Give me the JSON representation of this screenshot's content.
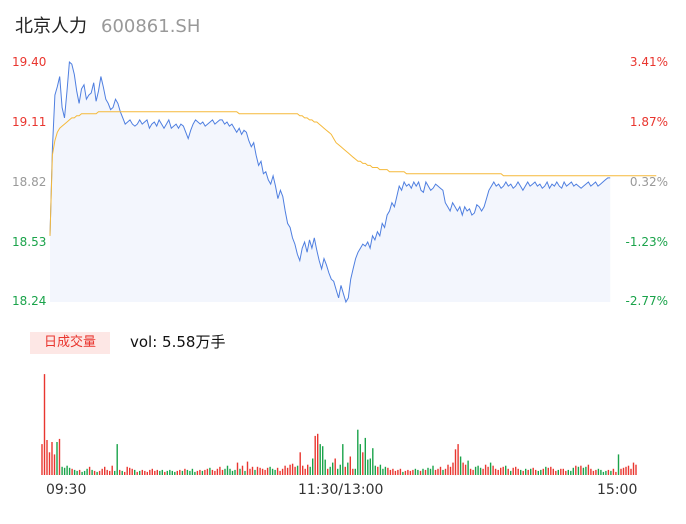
{
  "header": {
    "name": "北京人力",
    "code": "600861.SH"
  },
  "price_axis": {
    "left_labels": [
      "19.40",
      "19.11",
      "18.82",
      "18.53",
      "18.24"
    ],
    "right_labels": [
      "3.41%",
      "1.87%",
      "0.32%",
      "-1.23%",
      "-2.77%"
    ]
  },
  "volume_panel": {
    "badge": "日成交量",
    "vol_text": "vol: 5.58万手"
  },
  "time_labels": [
    "09:30",
    "11:30/13:00",
    "15:00"
  ],
  "colors": {
    "up": "#e9362f",
    "down": "#1aa34a",
    "neutral": "#999999",
    "price_line": "#4f7fe0",
    "avg_line": "#f5b93a",
    "area_fill": "#f3f6fd"
  },
  "chart_data": [
    {
      "type": "line",
      "title": "",
      "xlabel": "",
      "ylabel": "",
      "x_range": [
        0,
        240
      ],
      "ylim": [
        18.24,
        19.4
      ],
      "series": [
        {
          "values": [
            18.56,
            18.98,
            19.24,
            19.28,
            19.33,
            19.18,
            19.13,
            19.26,
            19.4,
            19.39,
            19.34,
            19.26,
            19.2,
            19.27,
            19.29,
            19.22,
            19.24,
            19.25,
            19.3,
            19.21,
            19.26,
            19.33,
            19.28,
            19.22,
            19.2,
            19.17,
            19.18,
            19.22,
            19.2,
            19.16,
            19.13,
            19.1,
            19.11,
            19.12,
            19.1,
            19.09,
            19.1,
            19.12,
            19.1,
            19.11,
            19.12,
            19.08,
            19.1,
            19.11,
            19.09,
            19.12,
            19.1,
            19.08,
            19.1,
            19.12,
            19.08,
            19.09,
            19.1,
            19.08,
            19.1,
            19.09,
            19.06,
            19.03,
            19.07,
            19.1,
            19.12,
            19.11,
            19.1,
            19.11,
            19.09,
            19.1,
            19.11,
            19.12,
            19.1,
            19.11,
            19.12,
            19.12,
            19.1,
            19.11,
            19.09,
            19.1,
            19.08,
            19.06,
            19.08,
            19.05,
            19.07,
            19.06,
            19.02,
            18.99,
            19.01,
            18.95,
            18.9,
            18.92,
            18.86,
            18.87,
            18.83,
            18.81,
            18.85,
            18.8,
            18.74,
            18.78,
            18.75,
            18.68,
            18.62,
            18.6,
            18.55,
            18.52,
            18.47,
            18.44,
            18.5,
            18.53,
            18.48,
            18.54,
            18.5,
            18.55,
            18.49,
            18.44,
            18.4,
            18.45,
            18.42,
            18.38,
            18.35,
            18.34,
            18.3,
            18.26,
            18.32,
            18.28,
            18.24,
            18.26,
            18.35,
            18.4,
            18.45,
            18.48,
            18.5,
            18.52,
            18.51,
            18.53,
            18.5,
            18.56,
            18.54,
            18.58,
            18.56,
            18.62,
            18.6,
            18.66,
            18.68,
            18.72,
            18.7,
            18.75,
            18.8,
            18.78,
            18.82,
            18.8,
            18.81,
            18.79,
            18.82,
            18.8,
            18.82,
            18.78,
            18.77,
            18.82,
            18.8,
            18.78,
            18.79,
            18.81,
            18.8,
            18.79,
            18.78,
            18.72,
            18.7,
            18.68,
            18.72,
            18.7,
            18.68,
            18.7,
            18.66,
            18.7,
            18.68,
            18.69,
            18.66,
            18.67,
            18.71,
            18.7,
            18.68,
            18.7,
            18.74,
            18.78,
            18.8,
            18.82,
            18.8,
            18.81,
            18.79,
            18.8,
            18.82,
            18.8,
            18.81,
            18.79,
            18.8,
            18.82,
            18.8,
            18.78,
            18.8,
            18.82,
            18.8,
            18.81,
            18.82,
            18.8,
            18.81,
            18.79,
            18.8,
            18.82,
            18.79,
            18.81,
            18.8,
            18.82,
            18.8,
            18.79,
            18.82,
            18.8,
            18.81,
            18.82,
            18.8,
            18.81,
            18.8,
            18.79,
            18.8,
            18.81,
            18.82,
            18.8,
            18.81,
            18.82,
            18.8,
            18.81,
            18.82,
            18.83,
            18.84,
            18.84
          ]
        },
        {
          "values": [
            18.56,
            18.95,
            19.02,
            19.06,
            19.08,
            19.09,
            19.1,
            19.11,
            19.12,
            19.13,
            19.13,
            19.14,
            19.14,
            19.15,
            19.15,
            19.15,
            19.15,
            19.15,
            19.15,
            19.15,
            19.16,
            19.16,
            19.16,
            19.16,
            19.16,
            19.16,
            19.16,
            19.16,
            19.16,
            19.16,
            19.16,
            19.16,
            19.16,
            19.16,
            19.16,
            19.16,
            19.16,
            19.16,
            19.16,
            19.16,
            19.16,
            19.16,
            19.16,
            19.16,
            19.16,
            19.16,
            19.16,
            19.16,
            19.16,
            19.16,
            19.16,
            19.16,
            19.16,
            19.16,
            19.16,
            19.16,
            19.16,
            19.16,
            19.16,
            19.16,
            19.16,
            19.16,
            19.16,
            19.16,
            19.16,
            19.16,
            19.16,
            19.16,
            19.16,
            19.16,
            19.16,
            19.16,
            19.16,
            19.16,
            19.16,
            19.16,
            19.16,
            19.16,
            19.15,
            19.15,
            19.15,
            19.15,
            19.15,
            19.15,
            19.15,
            19.15,
            19.15,
            19.15,
            19.15,
            19.15,
            19.15,
            19.15,
            19.15,
            19.15,
            19.15,
            19.15,
            19.15,
            19.15,
            19.15,
            19.15,
            19.15,
            19.15,
            19.15,
            19.14,
            19.14,
            19.13,
            19.13,
            19.12,
            19.12,
            19.11,
            19.11,
            19.1,
            19.09,
            19.08,
            19.07,
            19.06,
            19.05,
            19.03,
            19.01,
            19.0,
            18.99,
            18.98,
            18.97,
            18.96,
            18.95,
            18.94,
            18.93,
            18.92,
            18.92,
            18.91,
            18.91,
            18.9,
            18.9,
            18.89,
            18.89,
            18.89,
            18.88,
            18.88,
            18.88,
            18.88,
            18.87,
            18.87,
            18.87,
            18.87,
            18.87,
            18.87,
            18.87,
            18.86,
            18.86,
            18.86,
            18.86,
            18.86,
            18.86,
            18.86,
            18.86,
            18.86,
            18.86,
            18.86,
            18.86,
            18.86,
            18.86,
            18.86,
            18.86,
            18.86,
            18.86,
            18.86,
            18.86,
            18.86,
            18.86,
            18.86,
            18.86,
            18.86,
            18.86,
            18.86,
            18.86,
            18.86,
            18.86,
            18.86,
            18.86,
            18.86,
            18.86,
            18.86,
            18.86,
            18.86,
            18.86,
            18.86,
            18.86,
            18.85,
            18.85,
            18.85,
            18.85,
            18.85,
            18.85,
            18.85,
            18.85,
            18.85,
            18.85,
            18.85,
            18.85,
            18.85,
            18.85,
            18.85,
            18.85,
            18.85,
            18.85,
            18.85,
            18.85,
            18.85,
            18.85,
            18.85,
            18.85,
            18.85,
            18.85,
            18.85,
            18.85,
            18.85,
            18.85,
            18.85,
            18.85,
            18.85,
            18.85,
            18.85,
            18.85,
            18.85,
            18.85,
            18.85,
            18.85,
            18.85,
            18.85,
            18.85,
            18.85,
            18.85,
            18.85,
            18.85,
            18.85,
            18.85,
            18.85,
            18.85,
            18.85,
            18.85,
            18.85,
            18.85,
            18.85,
            18.85,
            18.85,
            18.85,
            18.85,
            18.85,
            18.85,
            18.85,
            18.85
          ]
        }
      ]
    },
    {
      "type": "bar",
      "title": "",
      "x_range": [
        0,
        240
      ],
      "ylim": [
        0,
        100
      ],
      "values": [
        30,
        98,
        34,
        22,
        32,
        20,
        32,
        35,
        8,
        7,
        9,
        7,
        6,
        5,
        4,
        5,
        3,
        4,
        6,
        8,
        5,
        4,
        3,
        4,
        6,
        8,
        5,
        4,
        9,
        4,
        30,
        5,
        4,
        3,
        8,
        7,
        6,
        5,
        3,
        4,
        5,
        4,
        3,
        5,
        6,
        4,
        5,
        4,
        5,
        3,
        4,
        5,
        4,
        3,
        4,
        5,
        4,
        6,
        5,
        4,
        6,
        3,
        4,
        5,
        4,
        5,
        6,
        7,
        5,
        4,
        6,
        8,
        5,
        6,
        9,
        6,
        4,
        5,
        12,
        6,
        9,
        4,
        13,
        6,
        8,
        5,
        8,
        7,
        6,
        5,
        7,
        8,
        6,
        5,
        7,
        4,
        6,
        9,
        7,
        10,
        11,
        8,
        9,
        22,
        9,
        6,
        10,
        8,
        16,
        38,
        40,
        30,
        28,
        15,
        6,
        8,
        12,
        16,
        6,
        10,
        30,
        8,
        12,
        18,
        6,
        6,
        44,
        30,
        22,
        36,
        15,
        16,
        26,
        9,
        8,
        10,
        6,
        8,
        7,
        5,
        6,
        4,
        5,
        6,
        3,
        4,
        5,
        4,
        5,
        6,
        5,
        4,
        6,
        5,
        7,
        6,
        9,
        5,
        6,
        8,
        5,
        6,
        10,
        8,
        12,
        25,
        30,
        18,
        12,
        10,
        14,
        6,
        5,
        8,
        9,
        7,
        6,
        10,
        8,
        12,
        9,
        6,
        5,
        7,
        8,
        9,
        6,
        4,
        7,
        8,
        6,
        5,
        4,
        6,
        5,
        6,
        7,
        5,
        4,
        5,
        6,
        8,
        7,
        8,
        6,
        4,
        5,
        6,
        6,
        4,
        5,
        4,
        7,
        9,
        8,
        9,
        7,
        8,
        10,
        6,
        4,
        5,
        6,
        5,
        3,
        4,
        5,
        4,
        6,
        3,
        20,
        6,
        7,
        8,
        9,
        6,
        12,
        10
      ],
      "colors": [
        "up",
        "up",
        "up",
        "up",
        "up",
        "up",
        "down",
        "up",
        "down",
        "down",
        "down",
        "down",
        "up",
        "down",
        "down",
        "up",
        "down",
        "down",
        "down",
        "up",
        "down",
        "up",
        "down",
        "up",
        "up",
        "up",
        "up",
        "up",
        "up",
        "down",
        "down",
        "up",
        "down",
        "up",
        "up",
        "up",
        "up",
        "down",
        "up",
        "down",
        "up",
        "up",
        "up",
        "up",
        "up",
        "up",
        "up",
        "down",
        "down",
        "up",
        "down",
        "down",
        "down",
        "down",
        "up",
        "up",
        "down",
        "up",
        "down",
        "down",
        "down",
        "down",
        "up",
        "up",
        "down",
        "up",
        "up",
        "down",
        "up",
        "up",
        "up",
        "up",
        "up",
        "down",
        "down",
        "down",
        "down",
        "down",
        "up",
        "down",
        "up",
        "down",
        "up",
        "up",
        "up",
        "down",
        "up",
        "up",
        "up",
        "up",
        "up",
        "down",
        "down",
        "down",
        "up",
        "up",
        "up",
        "up",
        "up",
        "up",
        "up",
        "up",
        "down",
        "up",
        "up",
        "up",
        "up",
        "down",
        "down",
        "up",
        "up",
        "down",
        "down",
        "down",
        "up",
        "down",
        "down",
        "up",
        "down",
        "down",
        "down",
        "up",
        "down",
        "up",
        "up",
        "down",
        "down",
        "down",
        "up",
        "down",
        "down",
        "down",
        "down",
        "down",
        "up",
        "down",
        "down",
        "down",
        "up",
        "up",
        "up",
        "up",
        "up",
        "up",
        "down",
        "up",
        "up",
        "up",
        "up",
        "down",
        "down",
        "up",
        "down",
        "up",
        "down",
        "down",
        "down",
        "up",
        "up",
        "up",
        "down",
        "up",
        "up",
        "up",
        "up",
        "up",
        "up",
        "down",
        "up",
        "up",
        "down",
        "up",
        "up",
        "down",
        "down",
        "down",
        "up",
        "up",
        "up",
        "down",
        "up",
        "up",
        "up",
        "up",
        "up",
        "down",
        "up",
        "down",
        "up",
        "up",
        "up",
        "down",
        "up",
        "down",
        "up",
        "down",
        "up",
        "up",
        "down",
        "down",
        "up",
        "down",
        "up",
        "up",
        "up",
        "up",
        "down",
        "up",
        "up",
        "up",
        "down",
        "down",
        "down",
        "up",
        "down",
        "up",
        "down",
        "down",
        "up",
        "up",
        "up",
        "up",
        "down",
        "down",
        "down",
        "down",
        "up",
        "down",
        "up",
        "up",
        "down",
        "up",
        "up",
        "up",
        "up",
        "up",
        "up",
        "up",
        "up",
        "up",
        "up"
      ]
    }
  ]
}
